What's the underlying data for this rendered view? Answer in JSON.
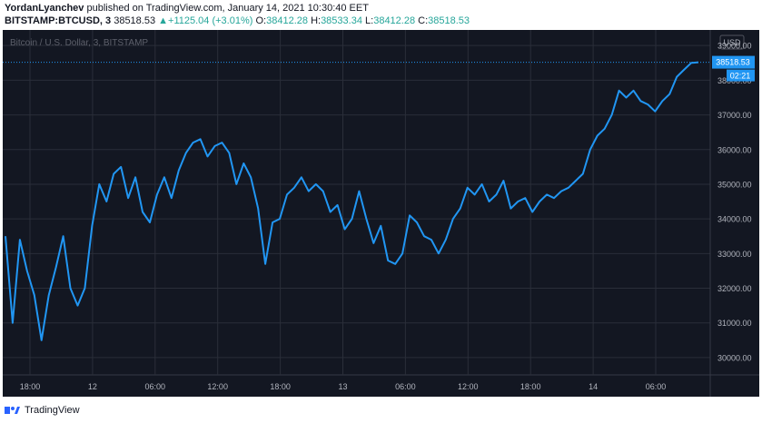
{
  "header": {
    "author": "YordanLyanchev",
    "published_text": "published on TradingView.com, January 14, 2021 10:30:40 EET",
    "symbol": "BITSTAMP:BTCUSD, 3",
    "last_price": "38518.53",
    "change_arrow": "▲",
    "change": "+1125.04 (+3.01%)",
    "o_label": "O:",
    "o_value": "38412.28",
    "h_label": "H:",
    "h_value": "38533.34",
    "l_label": "L:",
    "l_value": "38412.28",
    "c_label": "C:",
    "c_value": "38518.53"
  },
  "chart": {
    "watermark": "Bitcoin / U.S. Dollar, 3, BITSTAMP",
    "currency_button": "USD",
    "price_label": "38518.53",
    "countdown_label": "02:21",
    "colors": {
      "background": "#131722",
      "line": "#2196f3",
      "grid": "#2a2e39",
      "text": "#b2b5be"
    }
  },
  "chart_data": {
    "type": "line",
    "title": "Bitcoin / U.S. Dollar, 3, BITSTAMP",
    "xlabel": "",
    "ylabel": "",
    "x_tick_labels": [
      "18:00",
      "12",
      "06:00",
      "12:00",
      "18:00",
      "13",
      "06:00",
      "12:00",
      "18:00",
      "14",
      "06:00"
    ],
    "y_tick_labels": [
      "39000.00",
      "38000.00",
      "37000.00",
      "36000.00",
      "35000.00",
      "34000.00",
      "33000.00",
      "32000.00",
      "31000.00",
      "30000.00"
    ],
    "ylim": [
      29500,
      39450
    ],
    "last_value": 38518.53,
    "grid": true,
    "series": [
      {
        "values": [
          33500,
          31000,
          33400,
          32500,
          31800,
          30500,
          31800,
          32600,
          33500,
          32000,
          31500,
          32000,
          33800,
          35000,
          34500,
          35300,
          35500,
          34600,
          35200,
          34200,
          33900,
          34700,
          35200,
          34600,
          35400,
          35900,
          36200,
          36300,
          35800,
          36100,
          36200,
          35900,
          35000,
          35600,
          35200,
          34300,
          32700,
          33900,
          34000,
          34700,
          34900,
          35200,
          34800,
          35000,
          34800,
          34200,
          34400,
          33700,
          34000,
          34800,
          34000,
          33300,
          33800,
          32800,
          32700,
          33000,
          34100,
          33900,
          33500,
          33400,
          33000,
          33400,
          34000,
          34300,
          34900,
          34700,
          35000,
          34500,
          34700,
          35100,
          34300,
          34500,
          34600,
          34200,
          34500,
          34700,
          34600,
          34800,
          34900,
          35100,
          35300,
          36000,
          36400,
          36600,
          37000,
          37700,
          37500,
          37700,
          37400,
          37300,
          37100,
          37400,
          37600,
          38100,
          38300,
          38500,
          38518.53
        ]
      }
    ]
  },
  "footer": {
    "brand": "TradingView"
  }
}
